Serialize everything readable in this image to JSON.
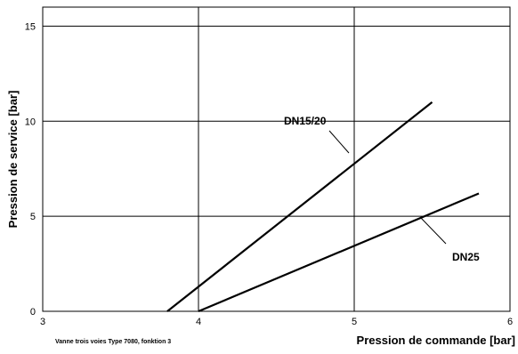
{
  "chart_data": {
    "type": "line",
    "xlabel": "Pression de commande [bar]",
    "ylabel": "Pression de service [bar]",
    "xlim": [
      3,
      6
    ],
    "ylim": [
      0,
      16
    ],
    "xticks": [
      3,
      4,
      5,
      6
    ],
    "yticks": [
      0,
      5,
      10,
      15
    ],
    "x_tick_labels": [
      "3",
      "4",
      "5",
      "6"
    ],
    "y_tick_labels": [
      "0",
      "5",
      "10",
      "15"
    ],
    "grid": true,
    "series": [
      {
        "name": "DN15/20",
        "points": [
          [
            3.8,
            0
          ],
          [
            5.5,
            11
          ]
        ]
      },
      {
        "name": "DN25",
        "points": [
          [
            4.0,
            0
          ],
          [
            5.8,
            6.2
          ]
        ]
      }
    ],
    "annotations": [
      {
        "text": "DN15/20",
        "series": "DN15/20"
      },
      {
        "text": "DN25",
        "series": "DN25"
      }
    ],
    "footnote": "Vanne trois voies Type 7080,  fonktion 3"
  }
}
